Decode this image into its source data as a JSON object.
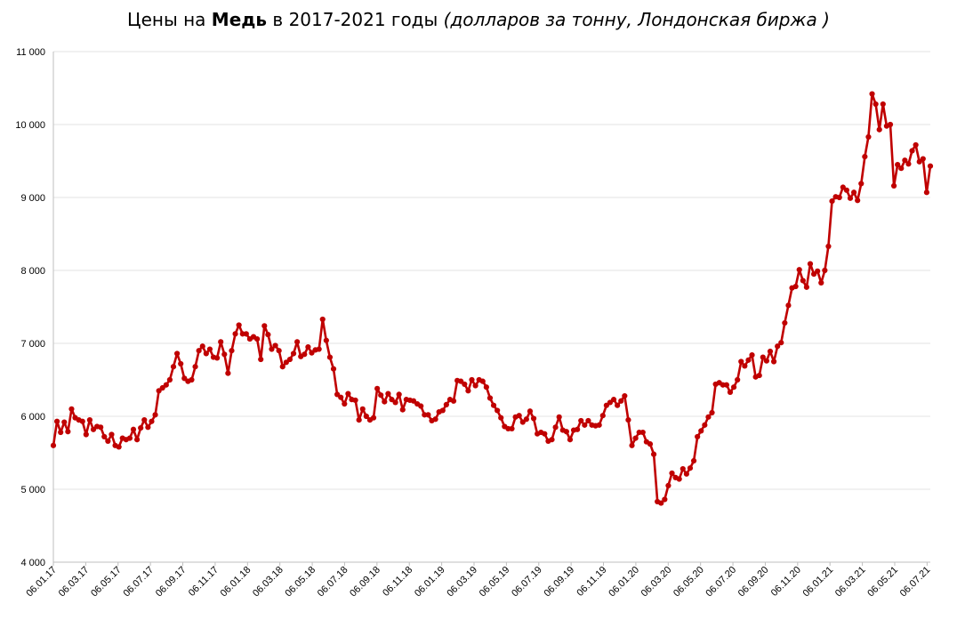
{
  "title": {
    "prefix": "Цены на ",
    "metal": "Медь",
    "years": " в 2017-2021 годы ",
    "units": "(долларов за тонну, Лондонская биржа )"
  },
  "chart_data": {
    "type": "line",
    "title": "Цены на Медь в 2017-2021 годы (долларов за тонну, Лондонская биржа )",
    "xlabel": "",
    "ylabel": "",
    "ylim": [
      4000,
      11000
    ],
    "yticks": [
      4000,
      5000,
      6000,
      7000,
      8000,
      9000,
      10000,
      11000
    ],
    "ytick_labels": [
      "4 000",
      "5 000",
      "6 000",
      "7 000",
      "8 000",
      "9 000",
      "10 000",
      "11 000"
    ],
    "xtick_labels": [
      "06.01.17",
      "06.03.17",
      "06.05.17",
      "06.07.17",
      "06.09.17",
      "06.11.17",
      "06.01.18",
      "06.03.18",
      "06.05.18",
      "06.07.18",
      "06.09.18",
      "06.11.18",
      "06.01.19",
      "06.03.19",
      "06.05.19",
      "06.07.19",
      "06.09.19",
      "06.11.19",
      "06.01.20",
      "06.03.20",
      "06.05.20",
      "06.07.20",
      "06.09.20",
      "06.11.20",
      "06.01.21",
      "06.03.21",
      "06.05.21",
      "06.07.21"
    ],
    "grid": true,
    "line_color": "#C00000",
    "series": [
      {
        "values": [
          5600,
          5930,
          5780,
          5920,
          5790,
          6100,
          5980,
          5950,
          5930,
          5750,
          5950,
          5820,
          5860,
          5850,
          5720,
          5660,
          5750,
          5600,
          5580,
          5700,
          5680,
          5700,
          5820,
          5680,
          5840,
          5950,
          5850,
          5930,
          6020,
          6350,
          6390,
          6430,
          6500,
          6680,
          6860,
          6720,
          6520,
          6480,
          6500,
          6680,
          6900,
          6960,
          6860,
          6920,
          6810,
          6800,
          7020,
          6850,
          6590,
          6900,
          7130,
          7250,
          7130,
          7130,
          7060,
          7090,
          7060,
          6780,
          7240,
          7120,
          6920,
          6970,
          6900,
          6680,
          6740,
          6780,
          6860,
          7020,
          6820,
          6850,
          6950,
          6870,
          6910,
          6920,
          7330,
          7040,
          6810,
          6650,
          6300,
          6260,
          6170,
          6310,
          6230,
          6220,
          5950,
          6100,
          6000,
          5950,
          5980,
          6380,
          6290,
          6200,
          6310,
          6230,
          6190,
          6300,
          6090,
          6230,
          6220,
          6210,
          6170,
          6140,
          6020,
          6020,
          5940,
          5960,
          6060,
          6080,
          6160,
          6230,
          6210,
          6490,
          6480,
          6440,
          6350,
          6500,
          6420,
          6500,
          6480,
          6400,
          6250,
          6150,
          6080,
          5980,
          5860,
          5830,
          5830,
          5990,
          6010,
          5920,
          5960,
          6070,
          5970,
          5760,
          5780,
          5760,
          5660,
          5680,
          5850,
          5990,
          5810,
          5790,
          5680,
          5810,
          5820,
          5940,
          5880,
          5940,
          5880,
          5870,
          5880,
          6010,
          6150,
          6190,
          6230,
          6150,
          6210,
          6280,
          5950,
          5600,
          5700,
          5780,
          5780,
          5650,
          5620,
          5480,
          4830,
          4810,
          4860,
          5050,
          5220,
          5160,
          5140,
          5280,
          5210,
          5290,
          5390,
          5720,
          5800,
          5880,
          5990,
          6050,
          6440,
          6460,
          6430,
          6430,
          6330,
          6400,
          6500,
          6750,
          6690,
          6770,
          6840,
          6540,
          6560,
          6810,
          6760,
          6890,
          6750,
          6960,
          7010,
          7280,
          7520,
          7760,
          7780,
          8010,
          7860,
          7770,
          8090,
          7950,
          7990,
          7830,
          8000,
          8330,
          8950,
          9010,
          9000,
          9140,
          9100,
          8990,
          9070,
          8960,
          9190,
          9560,
          9830,
          10420,
          10280,
          9930,
          10280,
          9980,
          10000,
          9160,
          9450,
          9400,
          9510,
          9460,
          9640,
          9720,
          9490,
          9530,
          9070,
          9430
        ]
      }
    ]
  }
}
